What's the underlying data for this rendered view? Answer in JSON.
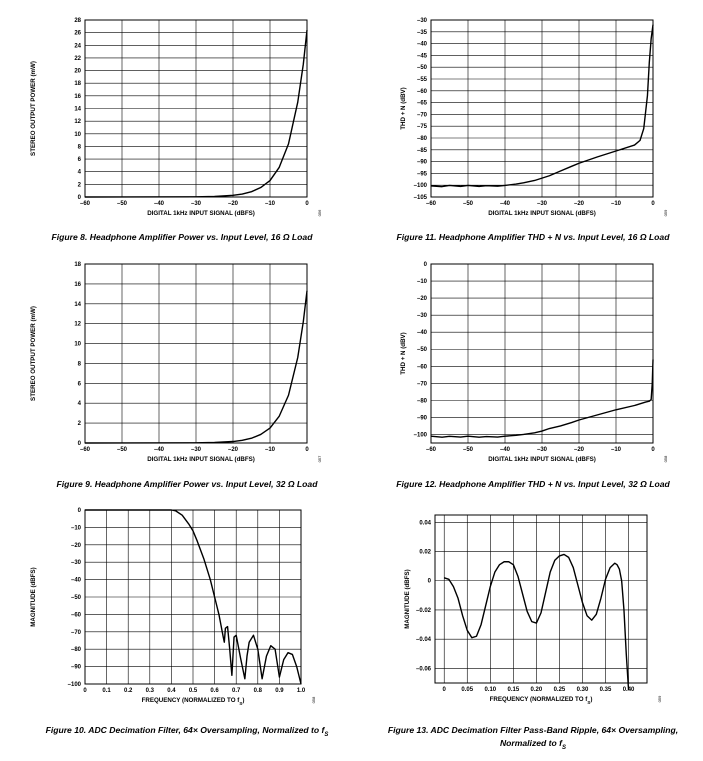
{
  "chart_data": [
    {
      "id": "fig8",
      "type": "line",
      "caption": "Figure 8. Headphone Amplifier Power vs. Input Level, 16 Ω Load",
      "xlabel": "DIGITAL 1kHz INPUT SIGNAL (dBFS)",
      "ylabel": "STEREO OUTPUT POWER (mW)",
      "xlim": [
        -60,
        0
      ],
      "ylim": [
        0,
        28
      ],
      "xticks": [
        -60,
        -50,
        -40,
        -30,
        -20,
        -10,
        0
      ],
      "xtick_labels": [
        "–60",
        "–50",
        "–40",
        "–30",
        "–20",
        "–10",
        "0"
      ],
      "yticks": [
        0,
        2,
        4,
        6,
        8,
        10,
        12,
        14,
        16,
        18,
        20,
        22,
        24,
        26,
        28
      ],
      "ytick_labels": [
        "0",
        "2",
        "4",
        "6",
        "8",
        "10",
        "12",
        "14",
        "16",
        "18",
        "20",
        "22",
        "24",
        "26",
        "28"
      ],
      "side_label": "056",
      "series": [
        {
          "x": [
            -60,
            -30,
            -25,
            -20,
            -17.5,
            -15,
            -12.5,
            -10,
            -7.5,
            -5,
            -2.5,
            -1,
            0
          ],
          "y": [
            0,
            0.03,
            0.08,
            0.27,
            0.47,
            0.84,
            1.5,
            2.6,
            4.7,
            8.4,
            15,
            21,
            26.4
          ]
        }
      ]
    },
    {
      "id": "fig11",
      "type": "line",
      "caption": "Figure 11. Headphone Amplifier THD + N vs. Input Level, 16 Ω Load",
      "xlabel": "DIGITAL 1kHz INPUT SIGNAL (dBFS)",
      "ylabel": "THD + N (dBV)",
      "xlim": [
        -60,
        0
      ],
      "ylim": [
        -105,
        -30
      ],
      "xticks": [
        -60,
        -50,
        -40,
        -30,
        -20,
        -10,
        0
      ],
      "xtick_labels": [
        "–60",
        "–50",
        "–40",
        "–30",
        "–20",
        "–10",
        "0"
      ],
      "yticks": [
        -105,
        -100,
        -95,
        -90,
        -85,
        -80,
        -75,
        -70,
        -65,
        -60,
        -55,
        -50,
        -45,
        -40,
        -35,
        -30
      ],
      "ytick_labels": [
        "–105",
        "–100",
        "–95",
        "–90",
        "–85",
        "–80",
        "–75",
        "–70",
        "–65",
        "–60",
        "–55",
        "–50",
        "–45",
        "–40",
        "–35",
        "–30"
      ],
      "side_label": "059",
      "series": [
        {
          "x": [
            -60,
            -57,
            -55,
            -52,
            -50,
            -47,
            -45,
            -42,
            -40,
            -37,
            -35,
            -32,
            -30,
            -28,
            -25,
            -22,
            -20,
            -15,
            -10,
            -5,
            -3.5,
            -2.5,
            -1.5,
            -1,
            -0.5,
            0
          ],
          "y": [
            -100.3,
            -100.6,
            -100.1,
            -100.5,
            -100.1,
            -100.5,
            -100.2,
            -100.4,
            -100.1,
            -99.5,
            -99,
            -98,
            -97,
            -96,
            -94,
            -92,
            -90.7,
            -88,
            -85.5,
            -83,
            -81,
            -76,
            -62,
            -48,
            -38,
            -32
          ]
        }
      ]
    },
    {
      "id": "fig9",
      "type": "line",
      "caption": "Figure 9. Headphone Amplifier Power vs. Input Level, 32 Ω Load",
      "xlabel": "DIGITAL 1kHz INPUT SIGNAL (dBFS)",
      "ylabel": "STEREO OUTPUT POWER (mW)",
      "xlim": [
        -60,
        0
      ],
      "ylim": [
        0,
        18
      ],
      "xticks": [
        -60,
        -50,
        -40,
        -30,
        -20,
        -10,
        0
      ],
      "xtick_labels": [
        "–60",
        "–50",
        "–40",
        "–30",
        "–20",
        "–10",
        "0"
      ],
      "yticks": [
        0,
        2,
        4,
        6,
        8,
        10,
        12,
        14,
        16,
        18
      ],
      "ytick_labels": [
        "0",
        "2",
        "4",
        "6",
        "8",
        "10",
        "12",
        "14",
        "16",
        "18"
      ],
      "side_label": "057",
      "series": [
        {
          "x": [
            -60,
            -30,
            -25,
            -20,
            -17.5,
            -15,
            -12.5,
            -10,
            -7.5,
            -5,
            -2.5,
            -1,
            0
          ],
          "y": [
            0,
            0.015,
            0.05,
            0.15,
            0.27,
            0.48,
            0.86,
            1.5,
            2.7,
            4.8,
            8.6,
            12.2,
            15.3
          ]
        }
      ]
    },
    {
      "id": "fig12",
      "type": "line",
      "caption": "Figure 12. Headphone Amplifier THD + N vs. Input Level, 32 Ω Load",
      "xlabel": "DIGITAL 1kHz INPUT SIGNAL (dBFS)",
      "ylabel": "THD + N (dBV)",
      "xlim": [
        -60,
        0
      ],
      "ylim": [
        -105,
        0
      ],
      "xticks": [
        -60,
        -50,
        -40,
        -30,
        -20,
        -10,
        0
      ],
      "xtick_labels": [
        "–60",
        "–50",
        "–40",
        "–30",
        "–20",
        "–10",
        "0"
      ],
      "yticks": [
        -100,
        -90,
        -80,
        -70,
        -60,
        -50,
        -40,
        -30,
        -20,
        -10,
        0
      ],
      "ytick_labels": [
        "–100",
        "–90",
        "–80",
        "–70",
        "–60",
        "–50",
        "–40",
        "–30",
        "–20",
        "–10",
        "0"
      ],
      "side_label": "058",
      "series": [
        {
          "x": [
            -60,
            -57,
            -55,
            -52,
            -50,
            -47,
            -45,
            -42,
            -40,
            -37,
            -35,
            -32,
            -30,
            -28,
            -25,
            -22,
            -20,
            -15,
            -10,
            -5,
            -2,
            -1,
            -0.5,
            -0.2,
            0
          ],
          "y": [
            -101,
            -101.6,
            -101.1,
            -101.5,
            -101,
            -101.6,
            -101.2,
            -101.5,
            -101,
            -100.5,
            -100,
            -99,
            -98,
            -96.5,
            -95,
            -93,
            -91.5,
            -88.5,
            -85.5,
            -83,
            -81,
            -80.5,
            -79.5,
            -70,
            -56
          ]
        }
      ]
    },
    {
      "id": "fig10",
      "type": "line",
      "caption": "Figure 10. ADC Decimation Filter, 64× Oversampling, Normalized to f",
      "caption_sub": "S",
      "xlabel": "FREQUENCY (NORMALIZED TO f",
      "xlabel_sub": "S",
      "xlabel_end": ")",
      "ylabel": "MAGNITUDE (dBFS)",
      "xlim": [
        0,
        1.0
      ],
      "ylim": [
        -100,
        0
      ],
      "xticks": [
        0,
        0.1,
        0.2,
        0.3,
        0.4,
        0.5,
        0.6,
        0.7,
        0.8,
        0.9,
        1.0
      ],
      "xtick_labels": [
        "0",
        "0.1",
        "0.2",
        "0.3",
        "0.4",
        "0.5",
        "0.6",
        "0.7",
        "0.8",
        "0.9",
        "1.0"
      ],
      "yticks": [
        -100,
        -90,
        -80,
        -70,
        -60,
        -50,
        -40,
        -30,
        -20,
        -10,
        0
      ],
      "ytick_labels": [
        "–100",
        "–90",
        "–80",
        "–70",
        "–60",
        "–50",
        "–40",
        "–30",
        "–20",
        "–10",
        "0"
      ],
      "side_label": "058",
      "series": [
        {
          "x": [
            0,
            0.4,
            0.42,
            0.45,
            0.48,
            0.5,
            0.52,
            0.55,
            0.58,
            0.6,
            0.62,
            0.64,
            0.645,
            0.65,
            0.66,
            0.67,
            0.68,
            0.69,
            0.7,
            0.72,
            0.74,
            0.75,
            0.76,
            0.78,
            0.8,
            0.82,
            0.84,
            0.86,
            0.88,
            0.9,
            0.92,
            0.94,
            0.96,
            0.98,
            1.0
          ],
          "y": [
            0,
            0,
            -0.5,
            -3,
            -8,
            -12,
            -18,
            -28,
            -40,
            -50,
            -60,
            -73,
            -76,
            -68,
            -67,
            -80,
            -95,
            -73,
            -72,
            -85,
            -97,
            -84,
            -76,
            -72,
            -80,
            -97,
            -84,
            -78,
            -80,
            -96,
            -86,
            -82,
            -83,
            -90,
            -100
          ]
        }
      ]
    },
    {
      "id": "fig13",
      "type": "line",
      "caption": "Figure 13. ADC Decimation Filter Pass-Band Ripple, 64× Oversampling,",
      "caption2": "Normalized to f",
      "caption_sub": "S",
      "xlabel": "FREQUENCY (NORMALIZED TO f",
      "xlabel_sub": "S",
      "xlabel_end": ")",
      "ylabel": "MAGNITUDE (dBFS)",
      "xlim": [
        -0.02,
        0.44
      ],
      "ylim": [
        -0.07,
        0.045
      ],
      "xticks": [
        0,
        0.05,
        0.1,
        0.15,
        0.2,
        0.25,
        0.3,
        0.35,
        0.4
      ],
      "xtick_labels": [
        "0",
        "0.05",
        "0.10",
        "0.15",
        "0.20",
        "0.25",
        "0.30",
        "0.35",
        "0.40"
      ],
      "yticks": [
        -0.06,
        -0.04,
        -0.02,
        0,
        0.02,
        0.04
      ],
      "ytick_labels": [
        "–0.06",
        "–0.04",
        "–0.02",
        "0",
        "0.02",
        "0.04"
      ],
      "side_label": "059",
      "series": [
        {
          "x": [
            0,
            0.01,
            0.02,
            0.03,
            0.04,
            0.05,
            0.06,
            0.07,
            0.08,
            0.09,
            0.1,
            0.11,
            0.12,
            0.13,
            0.14,
            0.15,
            0.16,
            0.17,
            0.18,
            0.19,
            0.2,
            0.21,
            0.22,
            0.23,
            0.24,
            0.25,
            0.26,
            0.27,
            0.28,
            0.29,
            0.3,
            0.31,
            0.32,
            0.33,
            0.34,
            0.35,
            0.36,
            0.37,
            0.375,
            0.38,
            0.385,
            0.39,
            0.395,
            0.4
          ],
          "y": [
            0.002,
            0.001,
            -0.004,
            -0.012,
            -0.024,
            -0.034,
            -0.039,
            -0.038,
            -0.03,
            -0.017,
            -0.004,
            0.006,
            0.011,
            0.013,
            0.013,
            0.011,
            0.003,
            -0.009,
            -0.021,
            -0.028,
            -0.029,
            -0.022,
            -0.008,
            0.006,
            0.014,
            0.017,
            0.018,
            0.016,
            0.009,
            -0.003,
            -0.015,
            -0.024,
            -0.027,
            -0.023,
            -0.012,
            0.001,
            0.009,
            0.012,
            0.011,
            0.008,
            0.0,
            -0.02,
            -0.05,
            -0.075
          ]
        }
      ]
    }
  ]
}
